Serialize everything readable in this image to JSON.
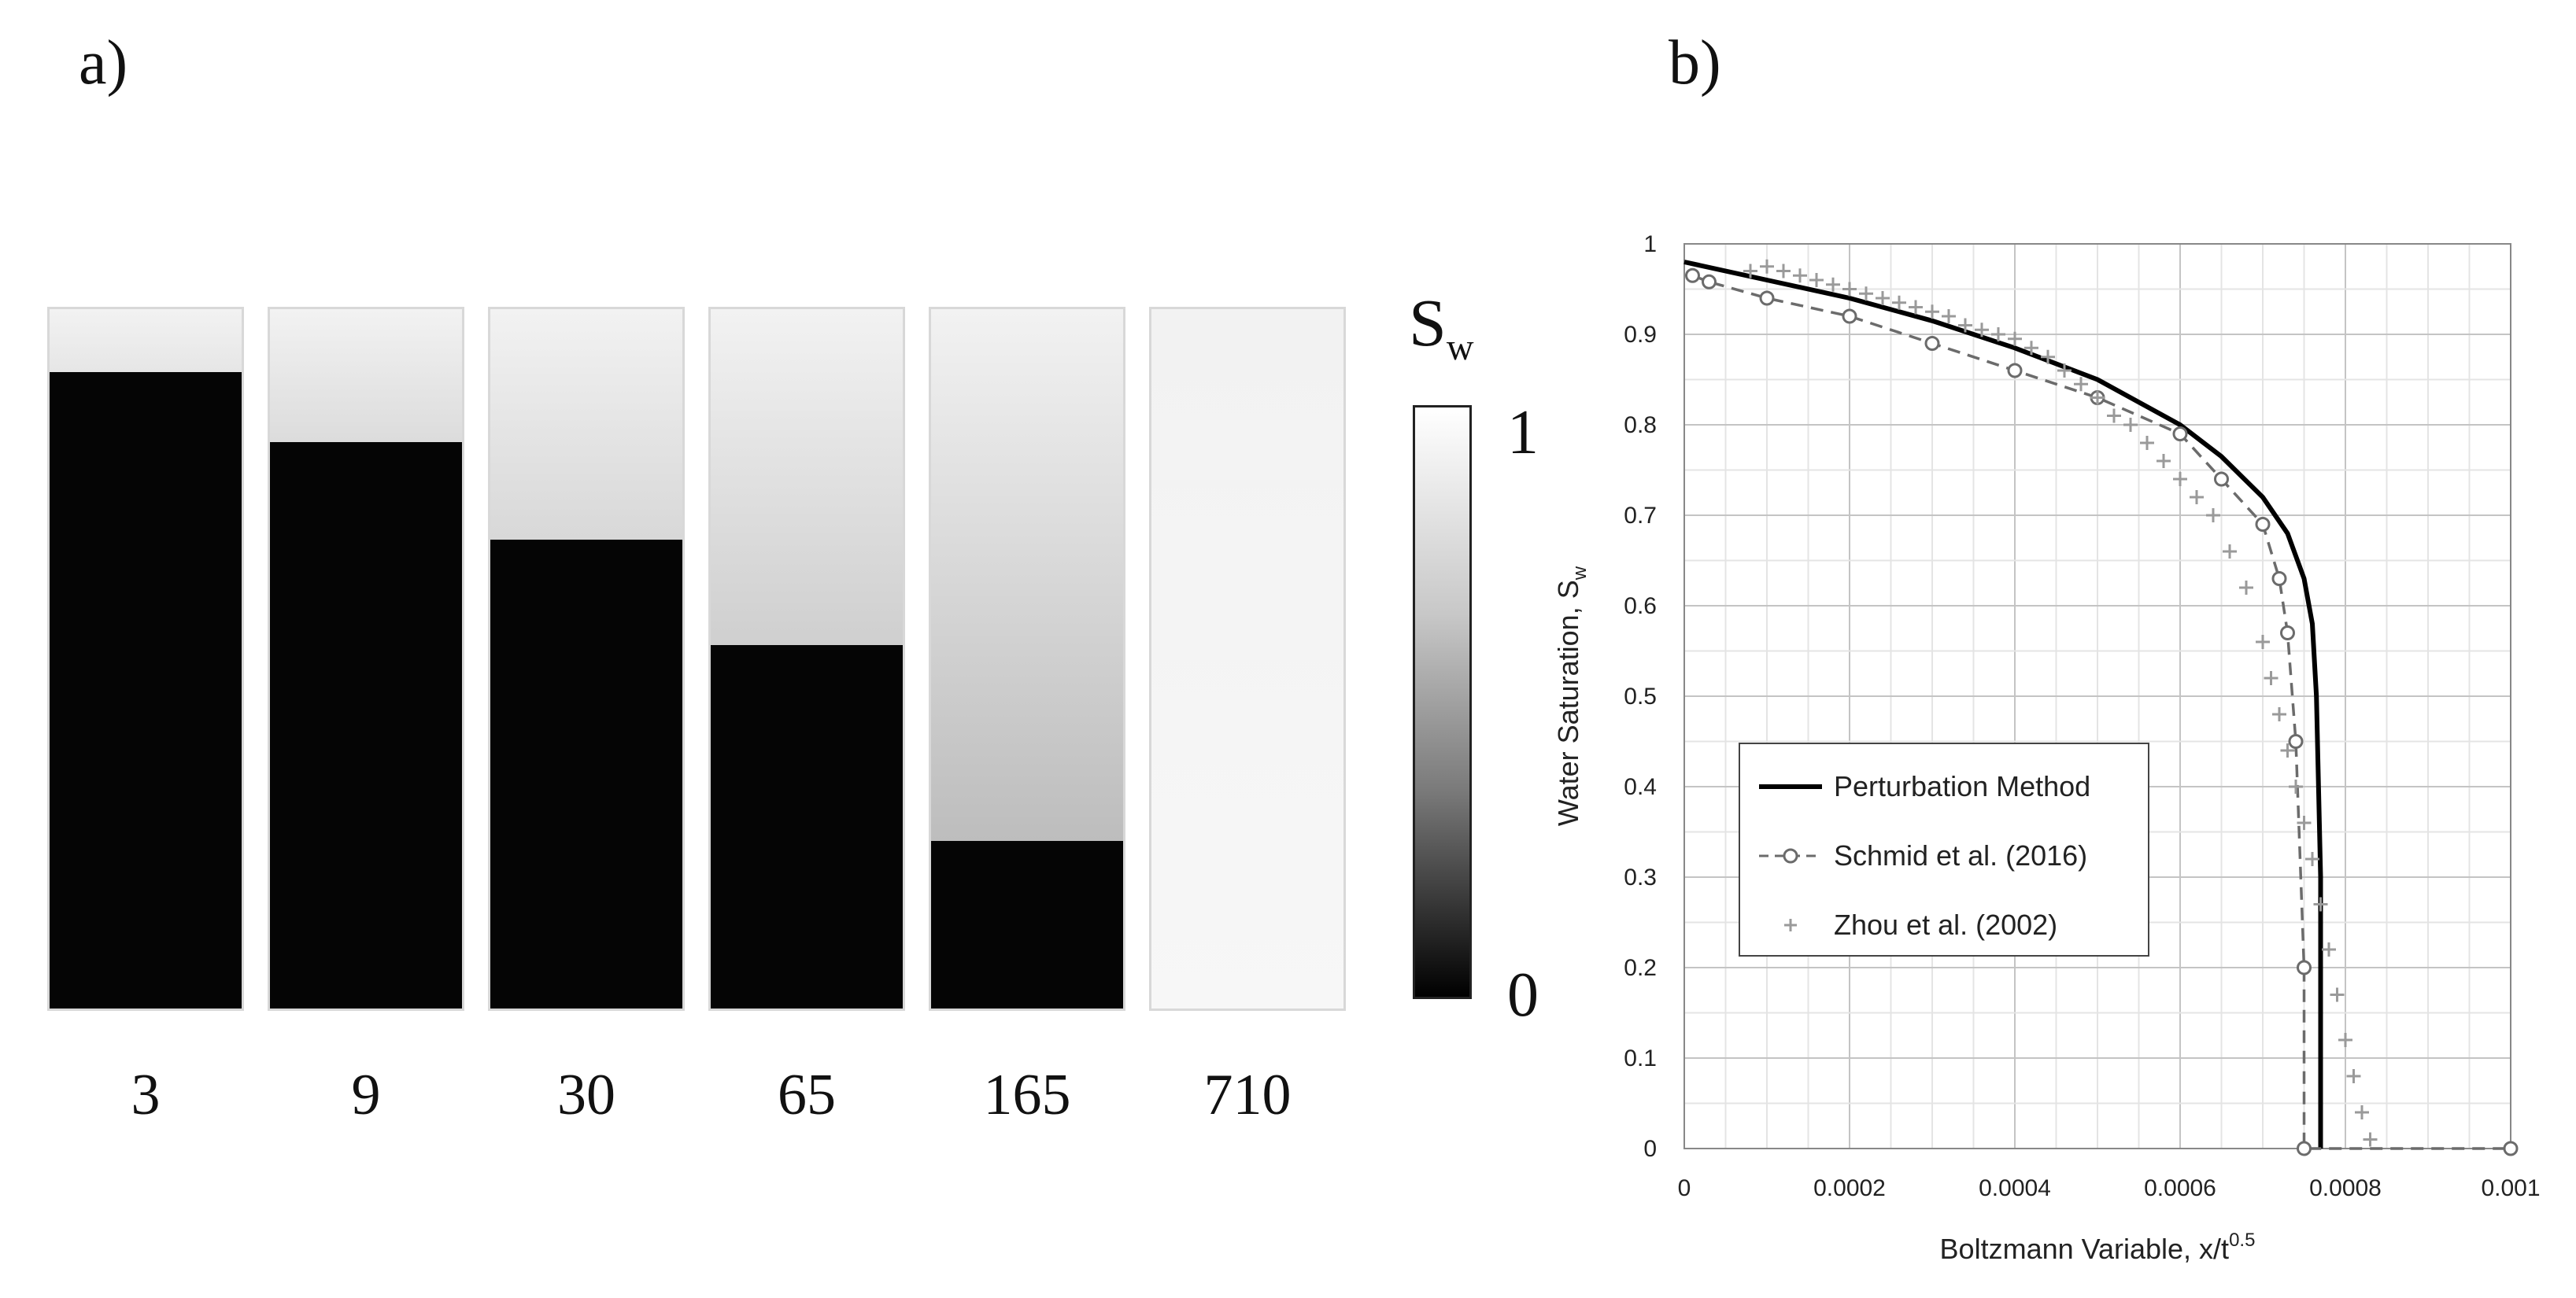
{
  "panel_a": {
    "label": "a)",
    "colorbar": {
      "symbol": "S",
      "subscript": "w",
      "max_label": "1",
      "min_label": "0"
    },
    "columns": [
      {
        "label": "3",
        "front_fraction": 0.91,
        "top_tone": "#e6e6e6"
      },
      {
        "label": "9",
        "front_fraction": 0.81,
        "top_tone": "#dcdcdc"
      },
      {
        "label": "30",
        "front_fraction": 0.67,
        "top_tone": "#d8d8d8"
      },
      {
        "label": "65",
        "front_fraction": 0.52,
        "top_tone": "#cfcfcf"
      },
      {
        "label": "165",
        "front_fraction": 0.24,
        "top_tone": "#bdbdbd"
      },
      {
        "label": "710",
        "front_fraction": 0.0,
        "top_tone": "#f7f7f7"
      }
    ]
  },
  "panel_b": {
    "label": "b)"
  },
  "chart_data": {
    "type": "line",
    "xlabel": "Boltzmann Variable, x/t",
    "xlabel_superscript": "0.5",
    "ylabel": "Water Saturation, S",
    "ylabel_subscript": "w",
    "xlim": [
      0,
      0.001
    ],
    "ylim": [
      0,
      1
    ],
    "x_ticks": [
      "0",
      "0.0002",
      "0.0004",
      "0.0006",
      "0.0008",
      "0.001"
    ],
    "y_ticks": [
      "0",
      "0.1",
      "0.2",
      "0.3",
      "0.4",
      "0.5",
      "0.6",
      "0.7",
      "0.8",
      "0.9",
      "1"
    ],
    "grid": true,
    "legend_position": "lower-left",
    "series": [
      {
        "name": "Perturbation Method",
        "style": "solid",
        "color": "#000000",
        "x": [
          0,
          0.0001,
          0.0002,
          0.0003,
          0.0004,
          0.0005,
          0.0006,
          0.00065,
          0.0007,
          0.00073,
          0.00075,
          0.00076,
          0.000765,
          0.00077,
          0.00077,
          0.00077
        ],
        "y": [
          0.98,
          0.96,
          0.94,
          0.915,
          0.885,
          0.85,
          0.8,
          0.765,
          0.72,
          0.68,
          0.63,
          0.58,
          0.5,
          0.3,
          0.1,
          0
        ]
      },
      {
        "name": "Schmid et al. (2016)",
        "style": "dashed-circle",
        "color": "#6b6b6b",
        "x": [
          1e-05,
          3e-05,
          0.0001,
          0.0002,
          0.0003,
          0.0004,
          0.0005,
          0.0006,
          0.00065,
          0.0007,
          0.00072,
          0.00073,
          0.00074,
          0.00075,
          0.00075,
          0.001
        ],
        "y": [
          0.965,
          0.958,
          0.94,
          0.92,
          0.89,
          0.86,
          0.83,
          0.79,
          0.74,
          0.69,
          0.63,
          0.57,
          0.45,
          0.2,
          0,
          0
        ]
      },
      {
        "name": "Zhou et al. (2002)",
        "style": "plus",
        "color": "#9a9a9a",
        "x": [
          8e-05,
          0.0001,
          0.00012,
          0.00014,
          0.00016,
          0.00018,
          0.0002,
          0.00022,
          0.00024,
          0.00026,
          0.00028,
          0.0003,
          0.00032,
          0.00034,
          0.00036,
          0.00038,
          0.0004,
          0.00042,
          0.00044,
          0.00046,
          0.00048,
          0.0005,
          0.00052,
          0.00054,
          0.00056,
          0.00058,
          0.0006,
          0.00062,
          0.00064,
          0.00066,
          0.00068,
          0.0007,
          0.00071,
          0.00072,
          0.00073,
          0.00074,
          0.00075,
          0.00076,
          0.00077,
          0.00078,
          0.00079,
          0.0008,
          0.00081,
          0.00082,
          0.00083
        ],
        "y": [
          0.97,
          0.975,
          0.97,
          0.965,
          0.96,
          0.955,
          0.95,
          0.945,
          0.94,
          0.935,
          0.93,
          0.925,
          0.92,
          0.91,
          0.905,
          0.9,
          0.895,
          0.885,
          0.875,
          0.86,
          0.845,
          0.83,
          0.81,
          0.8,
          0.78,
          0.76,
          0.74,
          0.72,
          0.7,
          0.66,
          0.62,
          0.56,
          0.52,
          0.48,
          0.44,
          0.4,
          0.36,
          0.32,
          0.27,
          0.22,
          0.17,
          0.12,
          0.08,
          0.04,
          0.01
        ]
      }
    ]
  }
}
